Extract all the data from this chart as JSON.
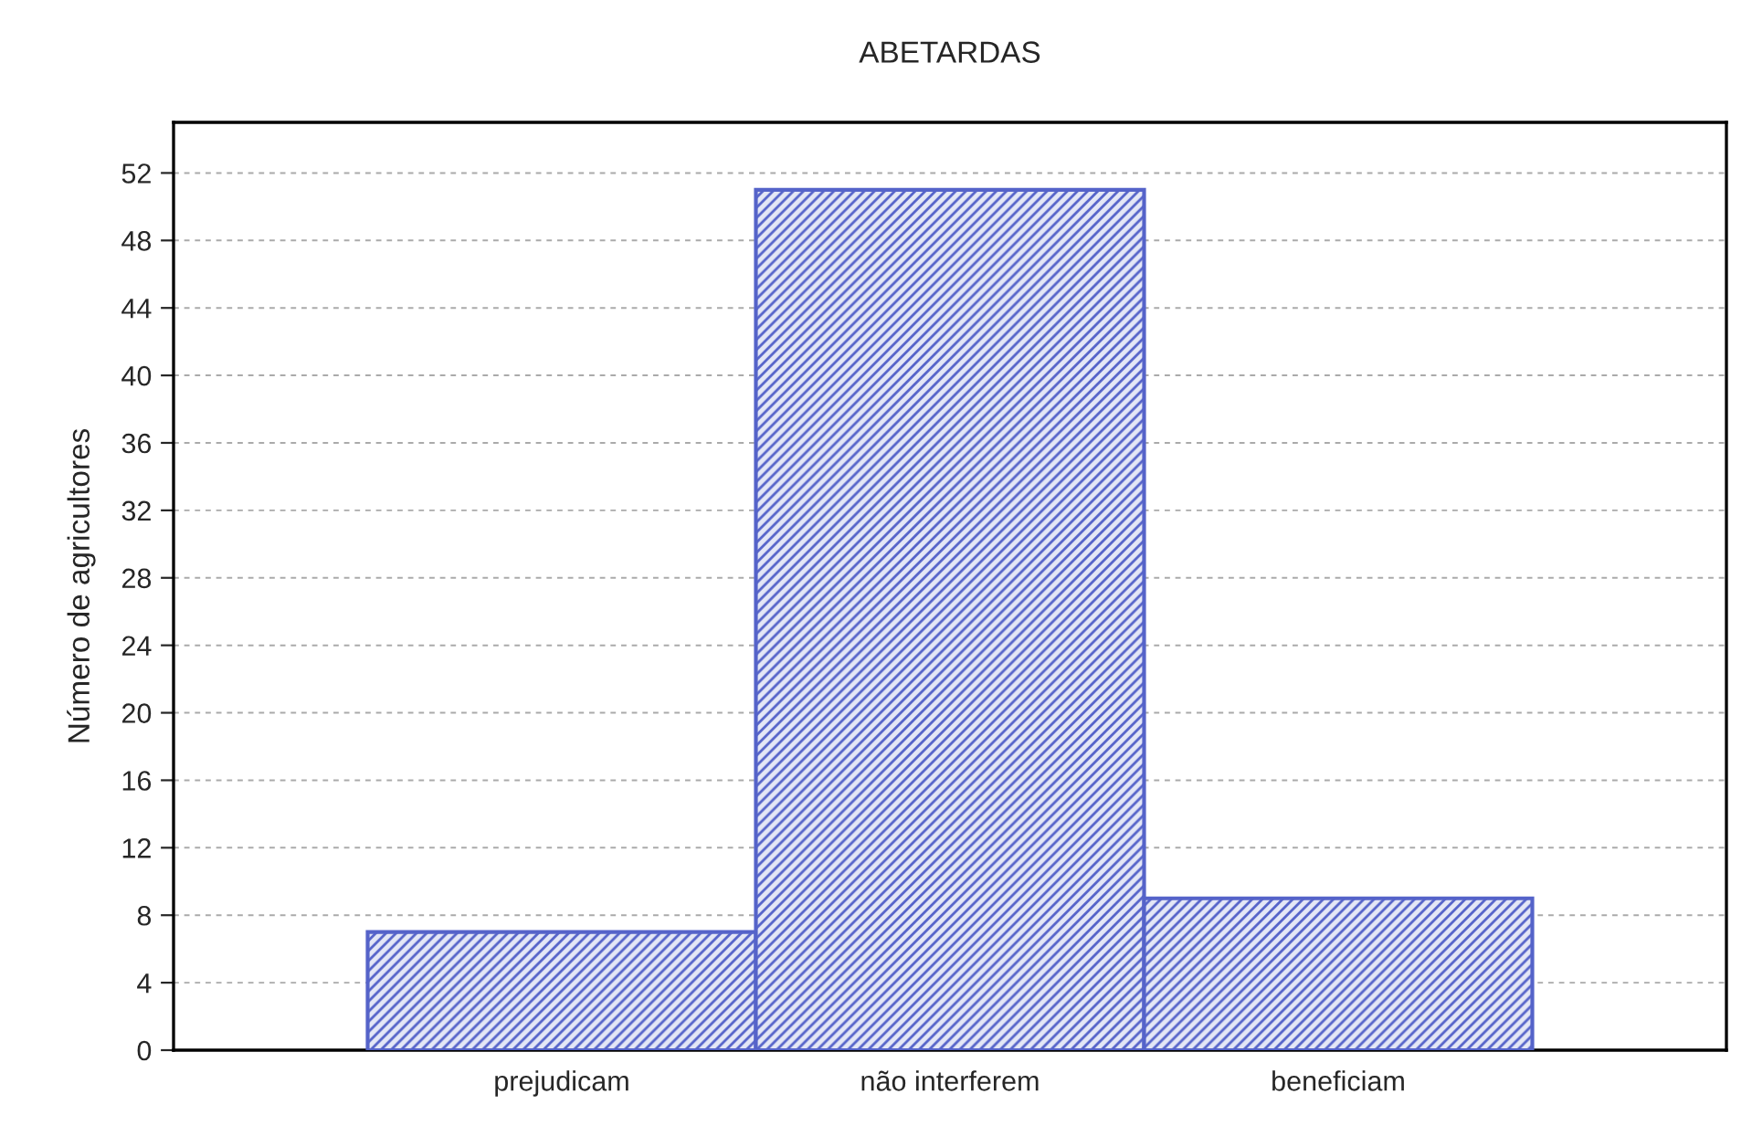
{
  "chart_data": {
    "type": "bar",
    "title": "ABETARDAS",
    "ylabel": "Número de agricultores",
    "categories": [
      "prejudicam",
      "não interferem",
      "beneficiam"
    ],
    "values": [
      7,
      51,
      9
    ],
    "color": "#5563c9",
    "ylim": [
      0,
      55
    ],
    "yticks": [
      0,
      4,
      8,
      12,
      16,
      20,
      24,
      28,
      32,
      36,
      40,
      44,
      48,
      52
    ],
    "grid": "y"
  }
}
